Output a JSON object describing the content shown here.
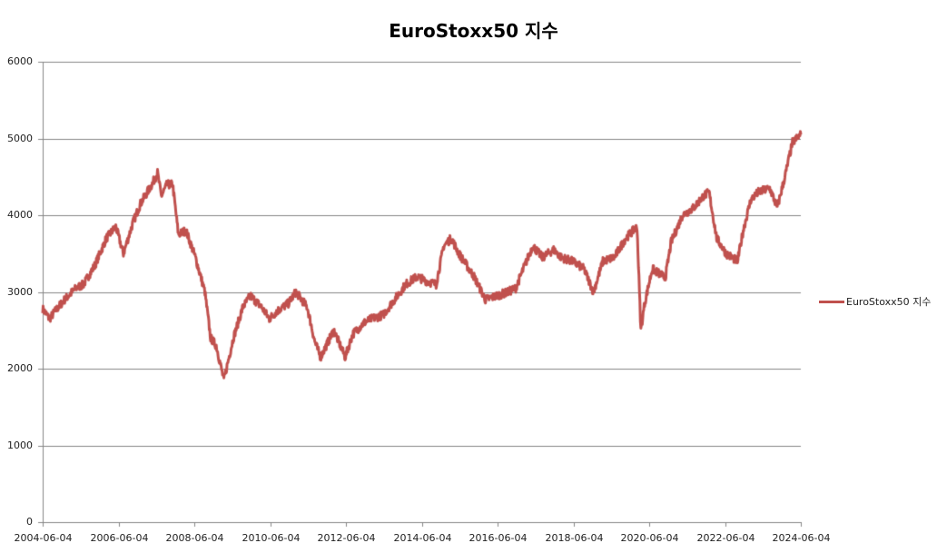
{
  "chart": {
    "title": "EuroStoxx50 지수",
    "legend_label": "EuroStoxx50 지수",
    "line_color": "#c0504d",
    "grid_color": "#868686"
  },
  "y_axis": {
    "ticks": [
      "0",
      "1000",
      "2000",
      "3000",
      "4000",
      "5000",
      "6000"
    ]
  },
  "x_axis": {
    "ticks": [
      "2004-06-04",
      "2006-06-04",
      "2008-06-04",
      "2010-06-04",
      "2012-06-04",
      "2014-06-04",
      "2016-06-04",
      "2018-06-04",
      "2020-06-04",
      "2022-06-04",
      "2024-06-04"
    ]
  },
  "chart_data": {
    "type": "line",
    "title": "EuroStoxx50 지수",
    "xlabel": "",
    "ylabel": "",
    "ylim": [
      0,
      6000
    ],
    "xlim": [
      "2004-06-04",
      "2024-06-04"
    ],
    "grid": true,
    "legend_position": "right",
    "categories": [
      "2004-06-04",
      "2006-06-04",
      "2008-06-04",
      "2010-06-04",
      "2012-06-04",
      "2014-06-04",
      "2016-06-04",
      "2018-06-04",
      "2020-06-04",
      "2022-06-04",
      "2024-06-04"
    ],
    "series": [
      {
        "name": "EuroStoxx50 지수",
        "color": "#c0504d",
        "x": [
          2004.42,
          2004.6,
          2004.75,
          2005.0,
          2005.3,
          2005.5,
          2005.8,
          2006.1,
          2006.35,
          2006.55,
          2006.8,
          2007.0,
          2007.3,
          2007.45,
          2007.55,
          2007.7,
          2007.85,
          2008.0,
          2008.2,
          2008.45,
          2008.7,
          2008.85,
          2009.0,
          2009.2,
          2009.45,
          2009.7,
          2009.9,
          2010.2,
          2010.4,
          2010.6,
          2010.9,
          2011.1,
          2011.4,
          2011.6,
          2011.75,
          2011.9,
          2012.1,
          2012.4,
          2012.6,
          2012.9,
          2013.1,
          2013.4,
          2013.7,
          2014.0,
          2014.3,
          2014.5,
          2014.8,
          2015.0,
          2015.2,
          2015.4,
          2015.6,
          2015.8,
          2016.1,
          2016.4,
          2016.7,
          2016.9,
          2017.1,
          2017.35,
          2017.6,
          2017.9,
          2018.1,
          2018.4,
          2018.7,
          2018.95,
          2019.2,
          2019.5,
          2019.8,
          2020.1,
          2020.2,
          2020.3,
          2020.5,
          2020.8,
          2020.85,
          2021.0,
          2021.3,
          2021.6,
          2021.85,
          2022.0,
          2022.2,
          2022.45,
          2022.75,
          2022.9,
          2023.1,
          2023.3,
          2023.6,
          2023.8,
          2024.0,
          2024.2,
          2024.42
        ],
        "values": [
          2780,
          2650,
          2750,
          2900,
          3050,
          3100,
          3350,
          3700,
          3850,
          3500,
          3900,
          4150,
          4400,
          4550,
          4250,
          4400,
          4400,
          3750,
          3800,
          3450,
          3000,
          2400,
          2300,
          1850,
          2400,
          2800,
          2950,
          2800,
          2650,
          2750,
          2850,
          3000,
          2800,
          2350,
          2150,
          2300,
          2500,
          2150,
          2450,
          2600,
          2650,
          2700,
          2900,
          3100,
          3200,
          3150,
          3100,
          3600,
          3700,
          3500,
          3350,
          3200,
          2900,
          2950,
          3000,
          3050,
          3300,
          3600,
          3450,
          3550,
          3450,
          3400,
          3300,
          3000,
          3400,
          3450,
          3700,
          3850,
          2500,
          2850,
          3300,
          3200,
          3200,
          3650,
          4000,
          4100,
          4250,
          4300,
          3700,
          3500,
          3400,
          3800,
          4200,
          4300,
          4350,
          4100,
          4500,
          4950,
          5050
        ]
      }
    ]
  }
}
